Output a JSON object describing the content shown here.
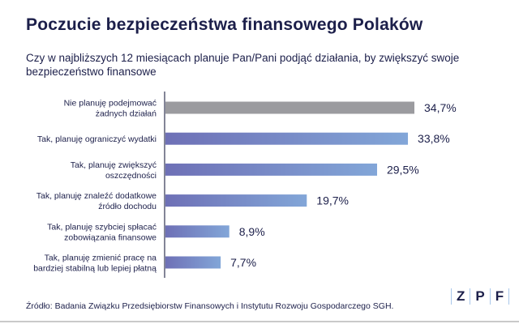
{
  "title": "Poczucie bezpieczeństwa finansowego Polaków",
  "subtitle": "Czy w najbliższych 12 miesiącach planuje Pan/Pani podjąć działania, by zwiększyć swoje bezpieczeństwo finansowe",
  "source": "Źródło: Badania Związku Przedsiębiorstw Finansowych i Instytutu Rozwoju Gospodarczego SGH.",
  "logo": [
    "Z",
    "P",
    "F"
  ],
  "chart_data": {
    "type": "bar",
    "orientation": "horizontal",
    "categories": [
      [
        "Nie planuję podejmować",
        "żadnych działań"
      ],
      [
        "Tak, planuję ograniczyć wydatki"
      ],
      [
        "Tak, planuję zwiększyć",
        "oszczędności"
      ],
      [
        "Tak, planuję znaleźć dodatkowe",
        "źródło dochodu"
      ],
      [
        "Tak, planuję szybciej spłacać",
        "zobowiązania finansowe"
      ],
      [
        "Tak, planuję zmienić pracę na",
        "bardziej stabilną lub lepiej płatną"
      ]
    ],
    "values": [
      34.7,
      33.8,
      29.5,
      19.7,
      8.9,
      7.7
    ],
    "data_labels": [
      "34,7%",
      "33,8%",
      "29,5%",
      "19,7%",
      "8,9%",
      "7,7%"
    ],
    "unit": "%",
    "xlim": [
      0,
      40
    ],
    "grid": false,
    "colors": {
      "first": "#9b9b9f",
      "gradient_start": "#6e70b6",
      "gradient_end": "#82a6d8",
      "text": "#1c1f4a"
    }
  }
}
